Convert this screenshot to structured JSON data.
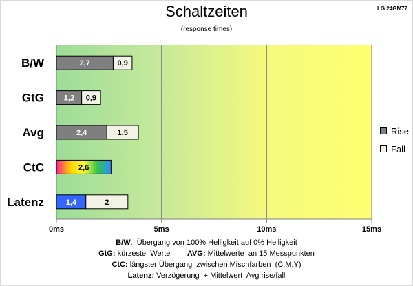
{
  "title": "Schaltzeiten",
  "subtitle": "(response times)",
  "model": "LG 24GM77",
  "chart_data": {
    "type": "bar",
    "orientation": "horizontal",
    "stacked": true,
    "categories": [
      "B/W",
      "GtG",
      "Avg",
      "CtC",
      "Latenz"
    ],
    "series": [
      {
        "name": "Rise",
        "values": [
          2.7,
          1.2,
          2.4,
          2.6,
          1.4
        ],
        "labels": [
          "2,7",
          "1,2",
          "2,4",
          "2,6",
          "1,4"
        ],
        "color": "#7f7f7f"
      },
      {
        "name": "Fall",
        "values": [
          0.9,
          0.9,
          1.5,
          null,
          2
        ],
        "labels": [
          "0,9",
          "0,9",
          "1,5",
          "",
          "2"
        ],
        "color": "#f2f2e6"
      }
    ],
    "special_colors": {
      "CtC": "rainbow",
      "Latenz": "#3366ff"
    },
    "xlim": [
      0,
      15
    ],
    "xticks": [
      0,
      5,
      10,
      15
    ],
    "xtick_labels": [
      "0ms",
      "5ms",
      "10ms",
      "15ms"
    ],
    "grid": true,
    "background": "gradient green-to-yellow",
    "legend_position": "right"
  },
  "notes": [
    {
      "parts": [
        {
          "b": "B/W"
        },
        {
          "t": ":  Übergang von 100% Helligkeit auf 0% Helligkeit"
        }
      ]
    },
    {
      "parts": [
        {
          "b": "GtG:"
        },
        {
          "t": " kürzeste  Werte        "
        },
        {
          "b": "AVG:"
        },
        {
          "t": " Mittelwerte  an 15 Messpunkten"
        }
      ]
    },
    {
      "parts": [
        {
          "b": "CtC:"
        },
        {
          "t": " längster Übergang  zwischen Mischfarben  (C,M,Y)"
        }
      ]
    },
    {
      "parts": [
        {
          "b": "Latenz:"
        },
        {
          "t": " Verzögerung  + Mittelwert  Avg rise/fall"
        }
      ]
    }
  ]
}
